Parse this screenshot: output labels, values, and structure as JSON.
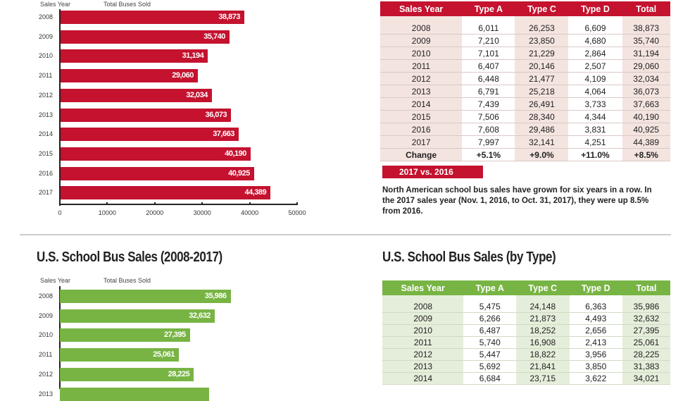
{
  "colors": {
    "red": "#c4122f",
    "green": "#78b444"
  },
  "chart_data": [
    {
      "type": "bar",
      "orientation": "horizontal",
      "xlabel": "Total Buses Sold",
      "ylabel": "Sales Year",
      "categories": [
        "2008",
        "2009",
        "2010",
        "2011",
        "2012",
        "2013",
        "2014",
        "2015",
        "2016",
        "2017"
      ],
      "values": [
        38873,
        35740,
        31194,
        29060,
        32034,
        36073,
        37663,
        40190,
        40925,
        44389
      ],
      "value_labels": [
        "38,873",
        "35,740",
        "31,194",
        "29,060",
        "32,034",
        "36,073",
        "37,663",
        "40,190",
        "40,925",
        "44,389"
      ],
      "xlim": [
        0,
        50000
      ],
      "x_ticks": [
        "0",
        "10000",
        "20000",
        "30000",
        "40000",
        "50000"
      ],
      "color": "#c4122f"
    },
    {
      "type": "bar",
      "orientation": "horizontal",
      "title": "U.S. School Bus Sales (2008-2017)",
      "xlabel": "Total Buses Sold",
      "ylabel": "Sales Year",
      "categories": [
        "2008",
        "2009",
        "2010",
        "2011",
        "2012",
        "2013"
      ],
      "values": [
        35986,
        32632,
        27395,
        25061,
        28225,
        31383
      ],
      "value_labels": [
        "35,986",
        "32,632",
        "27,395",
        "25,061",
        "28,225",
        ""
      ],
      "xlim": [
        0,
        50000
      ],
      "color": "#78b444"
    }
  ],
  "top_table": {
    "headers": [
      "Sales Year",
      "Type A",
      "Type C",
      "Type D",
      "Total"
    ],
    "rows": [
      [
        "2008",
        "6,011",
        "26,253",
        "6,609",
        "38,873"
      ],
      [
        "2009",
        "7,210",
        "23,850",
        "4,680",
        "35,740"
      ],
      [
        "2010",
        "7,101",
        "21,229",
        "2,864",
        "31,194"
      ],
      [
        "2011",
        "6,407",
        "20,146",
        "2,507",
        "29,060"
      ],
      [
        "2012",
        "6,448",
        "21,477",
        "4,109",
        "32,034"
      ],
      [
        "2013",
        "6,791",
        "25,218",
        "4,064",
        "36,073"
      ],
      [
        "2014",
        "7,439",
        "26,491",
        "3,733",
        "37,663"
      ],
      [
        "2015",
        "7,506",
        "28,340",
        "4,344",
        "40,190"
      ],
      [
        "2016",
        "7,608",
        "29,486",
        "3,831",
        "40,925"
      ],
      [
        "2017",
        "7,997",
        "32,141",
        "4,251",
        "44,389"
      ],
      [
        "Change",
        "+5.1%",
        "+9.0%",
        "+11.0%",
        "+8.5%"
      ]
    ],
    "change_label": "2017 vs. 2016",
    "note": "North American school bus sales have grown for six years in a row. In the 2017 sales year (Nov. 1, 2016, to Oct. 31, 2017), they were up 8.5% from 2016."
  },
  "bottom_table": {
    "title": "U.S. School Bus Sales (by Type)",
    "headers": [
      "Sales Year",
      "Type A",
      "Type C",
      "Type D",
      "Total"
    ],
    "rows": [
      [
        "2008",
        "5,475",
        "24,148",
        "6,363",
        "35,986"
      ],
      [
        "2009",
        "6,266",
        "21,873",
        "4,493",
        "32,632"
      ],
      [
        "2010",
        "6,487",
        "18,252",
        "2,656",
        "27,395"
      ],
      [
        "2011",
        "5,740",
        "16,908",
        "2,413",
        "25,061"
      ],
      [
        "2012",
        "5,447",
        "18,822",
        "3,956",
        "28,225"
      ],
      [
        "2013",
        "5,692",
        "21,841",
        "3,850",
        "31,383"
      ],
      [
        "2014",
        "6,684",
        "23,715",
        "3,622",
        "34,021"
      ]
    ]
  }
}
